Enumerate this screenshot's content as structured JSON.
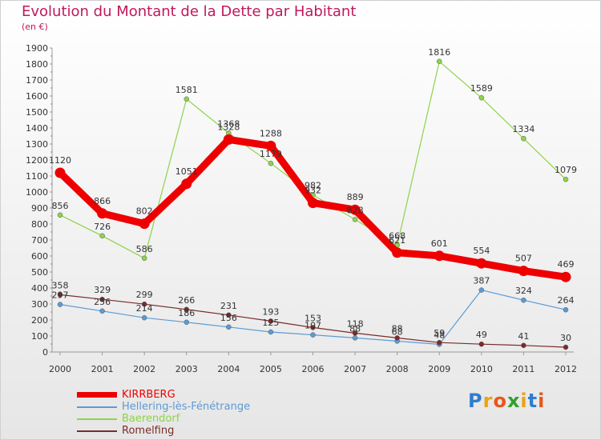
{
  "header": {
    "title": "Evolution du Montant de la Dette par Habitant",
    "subtitle": "(en €)"
  },
  "logo": {
    "text": "Proxiti",
    "colors": [
      "#2e7dd1",
      "#e8a317",
      "#e8561a",
      "#33a02c",
      "#e8a317",
      "#2e7dd1",
      "#e8561a"
    ]
  },
  "chart_data": {
    "type": "line",
    "x": [
      "2000",
      "2001",
      "2002",
      "2003",
      "2004",
      "2005",
      "2006",
      "2007",
      "2008",
      "2009",
      "2010",
      "2011",
      "2012"
    ],
    "ylim": [
      0,
      1900
    ],
    "ytick_step": 100,
    "grid": false,
    "legend_position": "bottom-left",
    "series": [
      {
        "name": "KIRRBERG",
        "color": "#ee0000",
        "values": [
          1120,
          866,
          802,
          1051,
          1328,
          1288,
          932,
          889,
          621,
          601,
          554,
          507,
          469
        ],
        "labels": [
          "1120",
          "866",
          "802",
          "1051",
          "1328",
          "1288",
          "932",
          "889",
          "621",
          "601",
          "554",
          "507",
          "469"
        ]
      },
      {
        "name": "Hellering-lès-Fénétrange",
        "color": "#5b9bd5",
        "values": [
          297,
          256,
          214,
          186,
          156,
          125,
          107,
          88,
          68,
          48,
          387,
          324,
          264
        ],
        "labels": [
          "297",
          "256",
          "214",
          "186",
          "156",
          "125",
          "107",
          "88",
          "68",
          "48",
          "387",
          "324",
          "264"
        ]
      },
      {
        "name": "Baerendorf",
        "color": "#8ed34b",
        "values": [
          856,
          726,
          586,
          1581,
          1368,
          1179,
          982,
          828,
          668,
          1816,
          1589,
          1334,
          1079
        ],
        "labels": [
          "856",
          "726",
          "586",
          "1581",
          "1368",
          "1179",
          "982",
          "828",
          "668",
          "1816",
          "1589",
          "1334",
          "1079"
        ]
      },
      {
        "name": "Romelfing",
        "color": "#7b2b2b",
        "values": [
          358,
          329,
          299,
          266,
          231,
          193,
          153,
          118,
          88,
          59,
          49,
          41,
          30
        ],
        "labels": [
          "358",
          "329",
          "299",
          "266",
          "231",
          "193",
          "153",
          "118",
          "88",
          "59",
          "49",
          "41",
          "30"
        ]
      }
    ]
  }
}
